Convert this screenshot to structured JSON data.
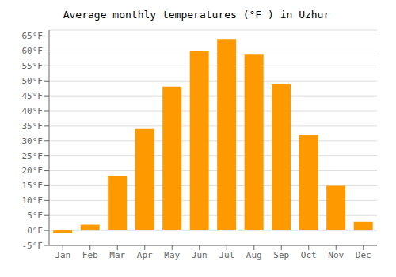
{
  "chart_data": {
    "type": "bar",
    "title": "Average monthly temperatures (°F ) in Uzhur",
    "categories": [
      "Jan",
      "Feb",
      "Mar",
      "Apr",
      "May",
      "Jun",
      "Jul",
      "Aug",
      "Sep",
      "Oct",
      "Nov",
      "Dec"
    ],
    "values": [
      -1,
      2,
      18,
      34,
      48,
      60,
      64,
      59,
      49,
      32,
      15,
      3
    ],
    "color": "#FF9900",
    "ylim": [
      -5,
      67
    ],
    "yticks": [
      {
        "value": -5,
        "label": "-5°F"
      },
      {
        "value": 0,
        "label": "0°F"
      },
      {
        "value": 5,
        "label": "5°F"
      },
      {
        "value": 10,
        "label": "10°F"
      },
      {
        "value": 15,
        "label": "15°F"
      },
      {
        "value": 20,
        "label": "20°F"
      },
      {
        "value": 25,
        "label": "25°F"
      },
      {
        "value": 30,
        "label": "30°F"
      },
      {
        "value": 35,
        "label": "35°F"
      },
      {
        "value": 40,
        "label": "40°F"
      },
      {
        "value": 45,
        "label": "45°F"
      },
      {
        "value": 50,
        "label": "50°F"
      },
      {
        "value": 55,
        "label": "55°F"
      },
      {
        "value": 60,
        "label": "60°F"
      },
      {
        "value": 65,
        "label": "65°F"
      }
    ],
    "grid": true
  }
}
